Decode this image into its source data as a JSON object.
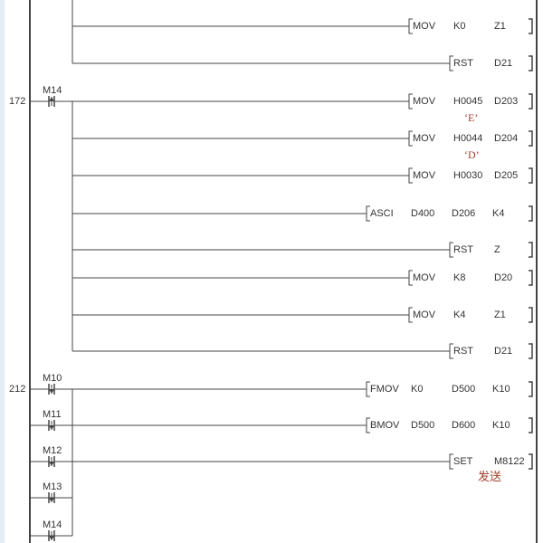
{
  "rungs": [
    {
      "step": "",
      "contacts": [],
      "rows": [
        {
          "instr": [
            "MOV",
            "K0",
            "Z1"
          ],
          "col": "mov"
        },
        {
          "instr": [
            "RST",
            "D21"
          ],
          "col": "rst"
        }
      ]
    },
    {
      "step": "172",
      "contacts": [
        {
          "label": "M14",
          "type": "rising-edge"
        }
      ],
      "rows": [
        {
          "instr": [
            "MOV",
            "H0045",
            "D203"
          ],
          "col": "mov",
          "note": "‘E’"
        },
        {
          "instr": [
            "MOV",
            "H0044",
            "D204"
          ],
          "col": "mov",
          "note": "‘D’"
        },
        {
          "instr": [
            "MOV",
            "H0030",
            "D205"
          ],
          "col": "mov"
        },
        {
          "instr": [
            "ASCI",
            "D400",
            "D206",
            "K4"
          ],
          "col": "asci"
        },
        {
          "instr": [
            "RST",
            "Z"
          ],
          "col": "rst"
        },
        {
          "instr": [
            "MOV",
            "K8",
            "D20"
          ],
          "col": "mov"
        },
        {
          "instr": [
            "MOV",
            "K4",
            "Z1"
          ],
          "col": "mov"
        },
        {
          "instr": [
            "RST",
            "D21"
          ],
          "col": "rst"
        }
      ]
    },
    {
      "step": "212",
      "contacts": [
        {
          "label": "M10",
          "type": "falling-edge"
        },
        {
          "label": "M11",
          "type": "falling-edge"
        },
        {
          "label": "M12",
          "type": "falling-edge"
        },
        {
          "label": "M13",
          "type": "falling-edge"
        },
        {
          "label": "M14",
          "type": "falling-edge"
        }
      ],
      "rows": [
        {
          "instr": [
            "FMOV",
            "K0",
            "D500",
            "K10"
          ],
          "col": "asci"
        },
        {
          "instr": [
            "BMOV",
            "D500",
            "D600",
            "K10"
          ],
          "col": "asci"
        },
        {
          "instr": [
            "SET",
            "M8122"
          ],
          "col": "rst",
          "note": "发送"
        }
      ]
    }
  ],
  "colors": {
    "line": "#444444",
    "text": "#333333",
    "comment": "#a0402a"
  }
}
